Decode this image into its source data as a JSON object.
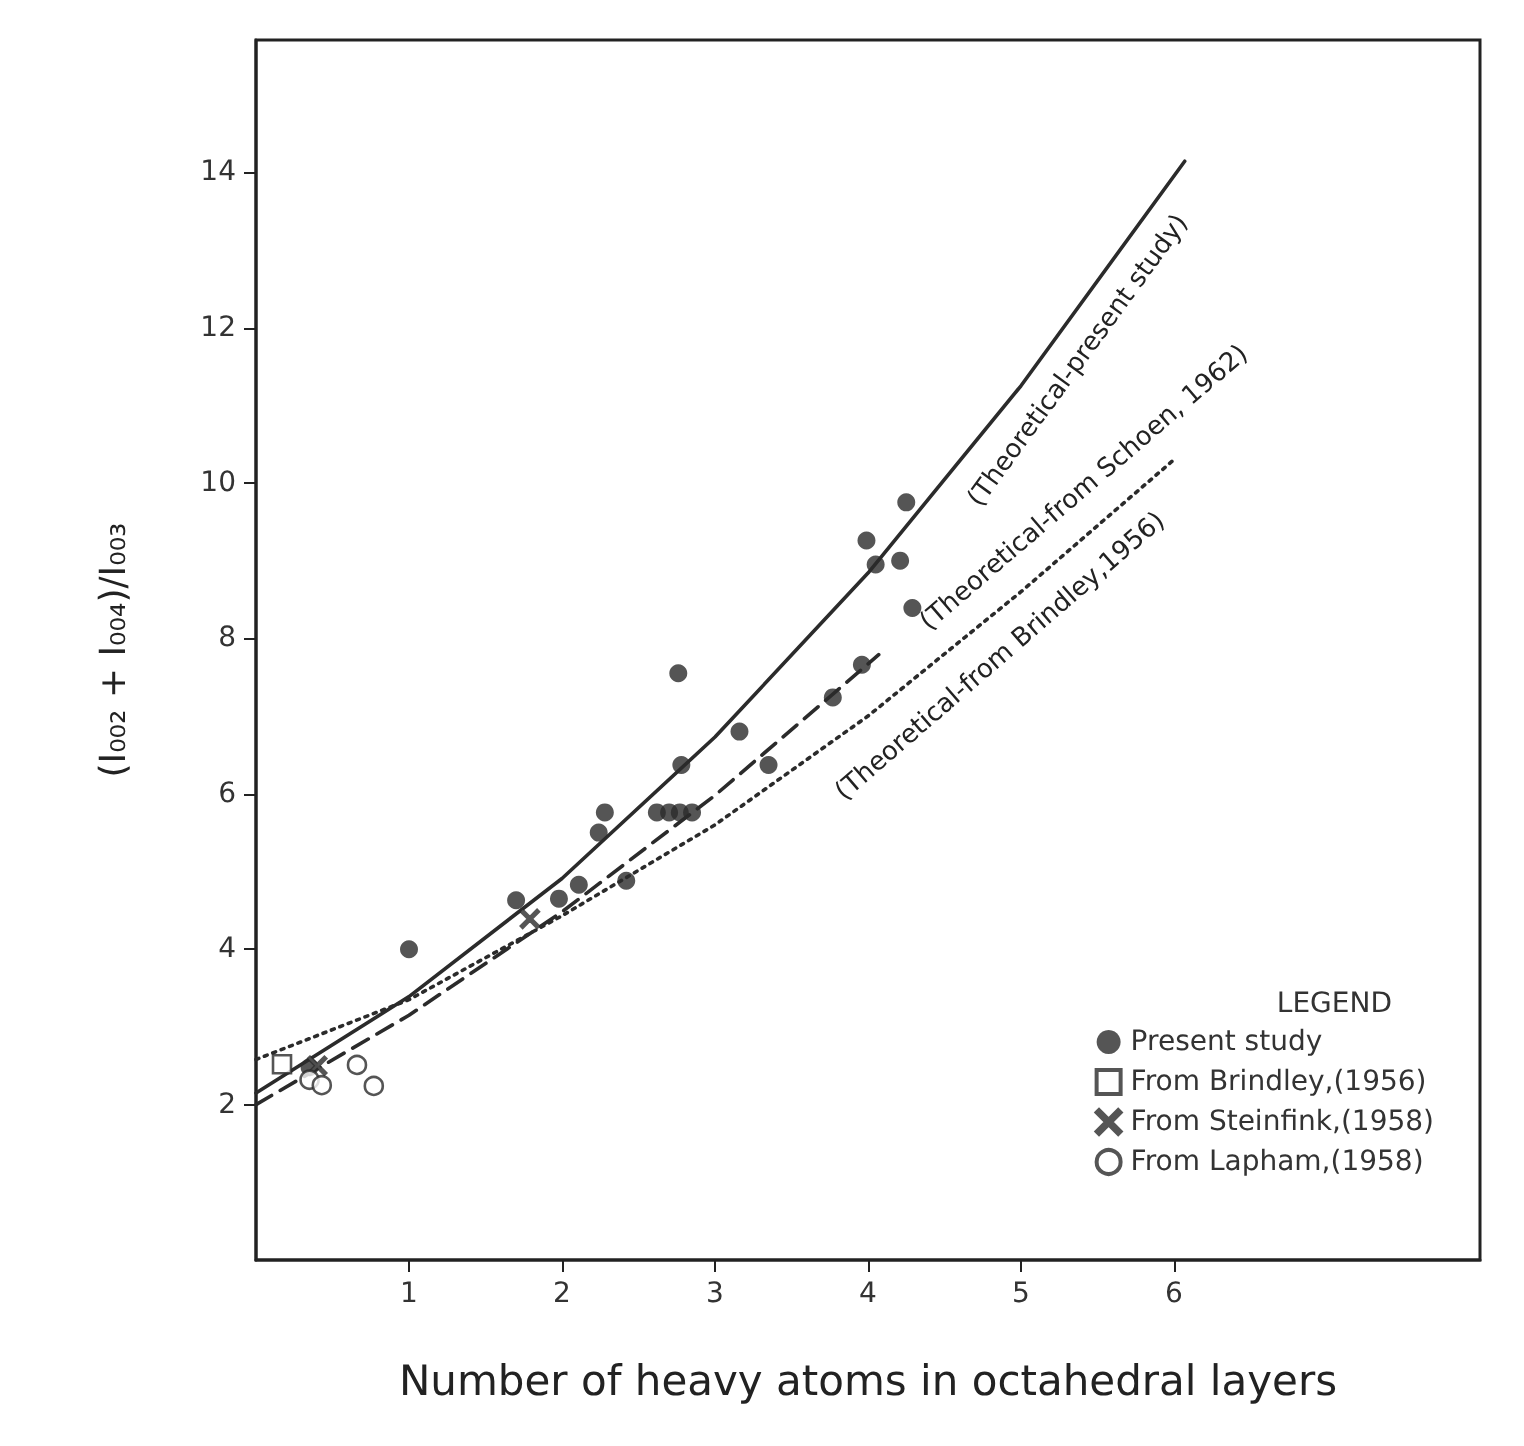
{
  "chart_data": {
    "type": "scatter",
    "xlabel": "Number of heavy atoms in octahedral layers",
    "ylabel": "(I₀₀₂ + I₀₀₄)/I₀₀₃",
    "legend_title": "LEGEND",
    "legend": "bottom right",
    "grid": false,
    "xlim": [
      0,
      8
    ],
    "xticks": [
      1,
      2,
      3,
      4,
      5,
      6
    ],
    "ylim": [
      0,
      15.7
    ],
    "yticks": [
      2,
      4,
      6,
      8,
      10,
      12,
      14
    ],
    "series": [
      {
        "name": "Present study",
        "color": "#2b2b2b",
        "marker": "circle",
        "x": [
          1.0,
          1.7,
          1.98,
          2.11,
          2.42,
          2.28,
          2.24,
          2.62,
          2.7,
          2.77,
          2.85,
          2.78,
          2.76,
          3.16,
          3.35,
          3.77,
          3.96,
          3.99,
          4.05,
          4.21,
          4.25,
          4.29,
          0.35
        ],
        "values": [
          4.0,
          4.63,
          4.65,
          4.83,
          4.88,
          5.76,
          5.5,
          5.76,
          5.76,
          5.76,
          5.76,
          6.37,
          7.55,
          6.8,
          6.37,
          7.24,
          7.66,
          9.26,
          8.95,
          9.0,
          9.75,
          8.39,
          2.48
        ]
      },
      {
        "name": "From Brindley,(1956)",
        "color": "#2b2b2b",
        "marker": "square",
        "x": [
          0.17
        ],
        "values": [
          2.52
        ]
      },
      {
        "name": "From Steinfink,(1958)",
        "color": "#2b2b2b",
        "marker": "cross",
        "x": [
          0.4,
          1.79
        ],
        "values": [
          2.5,
          4.39
        ]
      },
      {
        "name": "From Lapham,(1958)",
        "color": "#2b2b2b",
        "marker": "circle",
        "x": [
          0.35,
          0.43,
          0.66,
          0.77
        ],
        "values": [
          2.32,
          2.25,
          2.51,
          2.24
        ]
      },
      {
        "type": "line",
        "color": "#2b2b2b",
        "line_style": "solid",
        "marker": "none",
        "x": [
          0,
          1,
          2,
          3,
          4,
          5,
          6.07
        ],
        "values": [
          2.15,
          3.39,
          4.91,
          6.73,
          8.84,
          11.25,
          14.14
        ]
      },
      {
        "type": "line",
        "color": "#2b2b2b",
        "line_style": "dashed",
        "marker": "none",
        "x": [
          0,
          1,
          2,
          3,
          4.07
        ],
        "values": [
          2.0,
          3.15,
          4.48,
          5.98,
          7.79
        ]
      },
      {
        "type": "line",
        "color": "#2b2b2b",
        "line_style": "dotted",
        "marker": "none",
        "x": [
          0,
          1,
          2,
          3,
          4,
          5,
          6
        ],
        "values": [
          2.58,
          3.35,
          4.43,
          5.6,
          7.0,
          8.6,
          10.3
        ]
      }
    ],
    "annotations": [
      "(Theoretical-present study)",
      "(Theoretical-from Schoen, 1962)",
      "(Theoretical-from Brindley,1956)"
    ]
  }
}
